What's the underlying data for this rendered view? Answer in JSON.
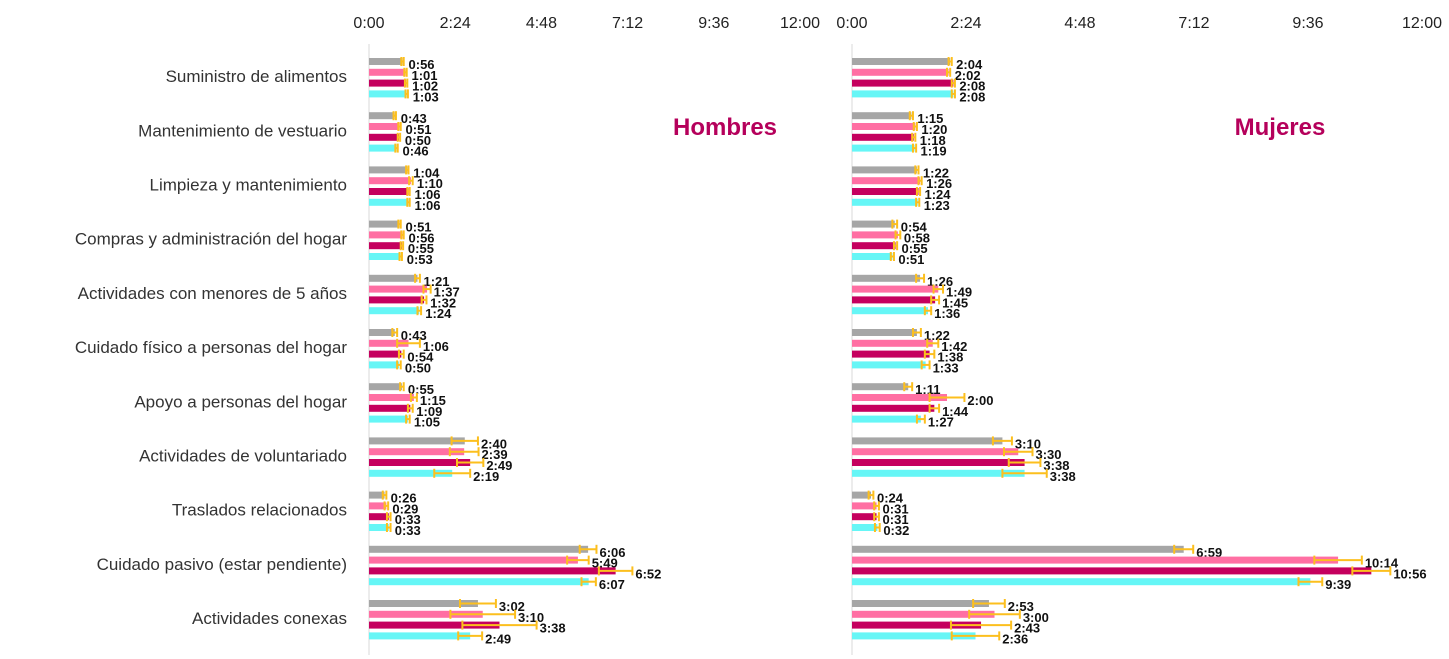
{
  "chart_data": {
    "type": "bar",
    "orientation": "horizontal",
    "categories": [
      "Suministro de alimentos",
      "Mantenimiento de vestuario",
      "Limpieza y mantenimiento",
      "Compras y administración del hogar",
      "Actividades con menores de 5 años",
      "Cuidado físico a personas del hogar",
      "Apoyo a personas del hogar",
      "Actividades de voluntariado",
      "Traslados relacionados",
      "Cuidado pasivo (estar pendiente)",
      "Actividades conexas"
    ],
    "x_ticks": [
      "0:00",
      "2:24",
      "4:48",
      "7:12",
      "9:36",
      "12:00"
    ],
    "xlim_minutes": [
      0,
      720
    ],
    "grid": false,
    "series_colors": [
      "#a6a6a6",
      "#ff6fa3",
      "#c5005e",
      "#66f6f6"
    ],
    "error_bar_color": "#fcbf1e",
    "panels": [
      {
        "title": "Hombres",
        "title_color": "#b5005b",
        "labels": [
          [
            "0:56",
            "1:01",
            "1:02",
            "1:03"
          ],
          [
            "0:43",
            "0:51",
            "0:50",
            "0:46"
          ],
          [
            "1:04",
            "1:10",
            "1:06",
            "1:06"
          ],
          [
            "0:51",
            "0:56",
            "0:55",
            "0:53"
          ],
          [
            "1:21",
            "1:37",
            "1:32",
            "1:24"
          ],
          [
            "0:43",
            "1:06",
            "0:54",
            "0:50"
          ],
          [
            "0:55",
            "1:15",
            "1:09",
            "1:05"
          ],
          [
            "2:40",
            "2:39",
            "2:49",
            "2:19"
          ],
          [
            "0:26",
            "0:29",
            "0:33",
            "0:33"
          ],
          [
            "6:06",
            "5:49",
            "6:52",
            "6:07"
          ],
          [
            "3:02",
            "3:10",
            "3:38",
            "2:49"
          ]
        ],
        "values_minutes": [
          [
            56,
            61,
            62,
            63
          ],
          [
            43,
            51,
            50,
            46
          ],
          [
            64,
            70,
            66,
            66
          ],
          [
            51,
            56,
            55,
            53
          ],
          [
            81,
            97,
            92,
            84
          ],
          [
            43,
            66,
            54,
            50
          ],
          [
            55,
            75,
            69,
            65
          ],
          [
            160,
            159,
            169,
            139
          ],
          [
            26,
            29,
            33,
            33
          ],
          [
            366,
            349,
            412,
            367
          ],
          [
            182,
            190,
            218,
            169
          ]
        ],
        "error_minutes": [
          [
            2,
            2,
            2,
            2
          ],
          [
            2,
            2,
            2,
            2
          ],
          [
            2,
            3,
            2,
            2
          ],
          [
            2,
            2,
            2,
            2
          ],
          [
            4,
            6,
            4,
            3
          ],
          [
            4,
            19,
            4,
            3
          ],
          [
            3,
            5,
            4,
            3
          ],
          [
            22,
            24,
            22,
            30
          ],
          [
            3,
            3,
            3,
            3
          ],
          [
            14,
            18,
            28,
            12
          ],
          [
            30,
            54,
            62,
            20
          ]
        ]
      },
      {
        "title": "Mujeres",
        "title_color": "#b5005b",
        "labels": [
          [
            "2:04",
            "2:02",
            "2:08",
            "2:08"
          ],
          [
            "1:15",
            "1:20",
            "1:18",
            "1:19"
          ],
          [
            "1:22",
            "1:26",
            "1:24",
            "1:23"
          ],
          [
            "0:54",
            "0:58",
            "0:55",
            "0:51"
          ],
          [
            "1:26",
            "1:49",
            "1:45",
            "1:36"
          ],
          [
            "1:22",
            "1:42",
            "1:38",
            "1:33"
          ],
          [
            "1:11",
            "2:00",
            "1:44",
            "1:27"
          ],
          [
            "3:10",
            "3:30",
            "3:38",
            "3:38"
          ],
          [
            "0:24",
            "0:31",
            "0:31",
            "0:32"
          ],
          [
            "6:59",
            "10:14",
            "10:56",
            "9:39"
          ],
          [
            "2:53",
            "3:00",
            "2:43",
            "2:36"
          ]
        ],
        "values_minutes": [
          [
            124,
            122,
            128,
            128
          ],
          [
            75,
            80,
            78,
            79
          ],
          [
            82,
            86,
            84,
            83
          ],
          [
            54,
            58,
            55,
            51
          ],
          [
            86,
            109,
            105,
            96
          ],
          [
            82,
            102,
            98,
            93
          ],
          [
            71,
            120,
            104,
            87
          ],
          [
            190,
            210,
            218,
            218
          ],
          [
            24,
            31,
            31,
            32
          ],
          [
            419,
            614,
            656,
            579
          ],
          [
            173,
            180,
            163,
            156
          ]
        ],
        "error_minutes": [
          [
            2,
            2,
            2,
            2
          ],
          [
            2,
            2,
            2,
            2
          ],
          [
            2,
            2,
            2,
            2
          ],
          [
            3,
            3,
            2,
            2
          ],
          [
            5,
            6,
            5,
            4
          ],
          [
            5,
            7,
            6,
            5
          ],
          [
            5,
            22,
            6,
            5
          ],
          [
            12,
            18,
            20,
            28
          ],
          [
            3,
            3,
            3,
            3
          ],
          [
            12,
            30,
            24,
            15
          ],
          [
            20,
            32,
            38,
            30
          ]
        ]
      }
    ]
  }
}
